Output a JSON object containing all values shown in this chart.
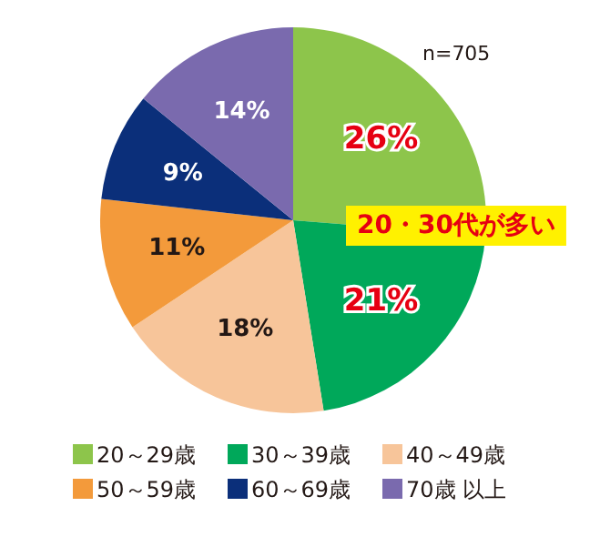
{
  "chart_data": {
    "type": "pie",
    "categories": [
      "20～29歳",
      "30～39歳",
      "40～49歳",
      "50～59歳",
      "60～69歳",
      "70歳 以上"
    ],
    "values": [
      26,
      21,
      18,
      11,
      9,
      14
    ],
    "colors": [
      "#8dc54b",
      "#00a85a",
      "#f7c59a",
      "#f39a3b",
      "#0b2f7a",
      "#7a6aae"
    ],
    "value_labels": [
      "26%",
      "21%",
      "18%",
      "11%",
      "9%",
      "14%"
    ],
    "legend": "bottom",
    "annotations": [
      "n=705",
      "20・30代が多い"
    ]
  }
}
